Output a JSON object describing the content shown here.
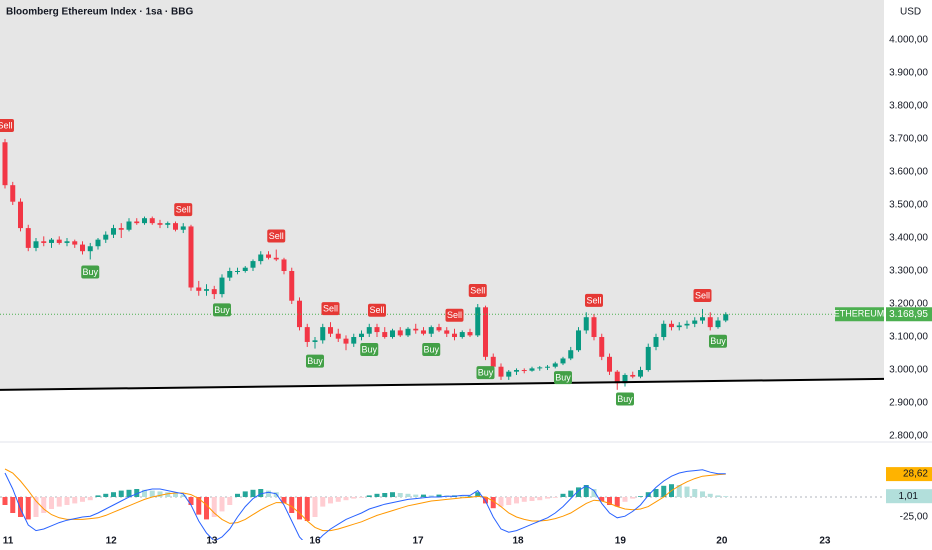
{
  "header": {
    "title": "Bloomberg Ethereum Index · 1sa · BBG"
  },
  "chart_data": [
    {
      "type": "candlestick",
      "currency": "USD",
      "up_color": "#089981",
      "down_color": "#f23645",
      "ylim": [
        2788,
        4121
      ],
      "yticks": [
        {
          "value": 4000,
          "label": "4.000,00"
        },
        {
          "value": 3900,
          "label": "3.900,00"
        },
        {
          "value": 3800,
          "label": "3.800,00"
        },
        {
          "value": 3700,
          "label": "3.700,00"
        },
        {
          "value": 3600,
          "label": "3.600,00"
        },
        {
          "value": 3500,
          "label": "3.500,00"
        },
        {
          "value": 3400,
          "label": "3.400,00"
        },
        {
          "value": 3300,
          "label": "3.300,00"
        },
        {
          "value": 3200,
          "label": "3.200,00"
        },
        {
          "value": 3100,
          "label": "3.100,00"
        },
        {
          "value": 3000,
          "label": "3.000,00"
        },
        {
          "value": 2900,
          "label": "2.900,00"
        },
        {
          "value": 2800,
          "label": "2.800,00"
        }
      ],
      "xlim": [
        -0.645,
        113.42
      ],
      "xticks": [
        {
          "value": 0.4,
          "label": "11"
        },
        {
          "value": 13.7,
          "label": "12"
        },
        {
          "value": 26.7,
          "label": "13"
        },
        {
          "value": 40,
          "label": "16"
        },
        {
          "value": 53.3,
          "label": "17"
        },
        {
          "value": 66.2,
          "label": "18"
        },
        {
          "value": 79.4,
          "label": "19"
        },
        {
          "value": 92.5,
          "label": "20"
        },
        {
          "value": 105.8,
          "label": "23"
        }
      ],
      "open": [
        3690,
        3560,
        3510,
        3430,
        3370,
        3390,
        3385,
        3395,
        3385,
        3390,
        3380,
        3360,
        3375,
        3395,
        3410,
        3430,
        3425,
        3450,
        3445,
        3460,
        3445,
        3440,
        3445,
        3425,
        3435,
        3250,
        3240,
        3245,
        3230,
        3280,
        3300,
        3300,
        3310,
        3330,
        3350,
        3340,
        3335,
        3300,
        3210,
        3130,
        3085,
        3090,
        3130,
        3110,
        3095,
        3080,
        3100,
        3110,
        3130,
        3115,
        3100,
        3120,
        3105,
        3125,
        3120,
        3110,
        3130,
        3120,
        3110,
        3100,
        3115,
        3105,
        3190,
        3040,
        3010,
        2980,
        2995,
        3000,
        2998,
        3005,
        3008,
        3010,
        3020,
        3035,
        3060,
        3120,
        3160,
        3100,
        3040,
        2995,
        2960,
        2985,
        2980,
        3000,
        3070,
        3100,
        3140,
        3130,
        3135,
        3140,
        3150,
        3160,
        3130,
        3150
      ],
      "high": [
        3700,
        3570,
        3520,
        3440,
        3400,
        3405,
        3400,
        3405,
        3400,
        3395,
        3390,
        3385,
        3400,
        3420,
        3440,
        3445,
        3460,
        3460,
        3465,
        3465,
        3455,
        3450,
        3450,
        3445,
        3440,
        3270,
        3260,
        3255,
        3290,
        3310,
        3310,
        3315,
        3335,
        3360,
        3360,
        3365,
        3340,
        3310,
        3220,
        3140,
        3100,
        3140,
        3145,
        3125,
        3105,
        3110,
        3120,
        3140,
        3140,
        3130,
        3125,
        3130,
        3130,
        3140,
        3130,
        3135,
        3140,
        3130,
        3125,
        3120,
        3125,
        3200,
        3195,
        3050,
        3020,
        3000,
        3005,
        3005,
        3010,
        3012,
        3015,
        3025,
        3040,
        3070,
        3130,
        3175,
        3170,
        3110,
        3050,
        3000,
        2990,
        2995,
        3010,
        3080,
        3110,
        3150,
        3150,
        3145,
        3150,
        3160,
        3185,
        3175,
        3160,
        3175
      ],
      "low": [
        3550,
        3500,
        3420,
        3360,
        3360,
        3375,
        3370,
        3380,
        3375,
        3370,
        3350,
        3335,
        3365,
        3385,
        3400,
        3400,
        3420,
        3440,
        3440,
        3440,
        3430,
        3430,
        3420,
        3415,
        3240,
        3225,
        3225,
        3215,
        3220,
        3270,
        3290,
        3295,
        3300,
        3320,
        3335,
        3330,
        3290,
        3200,
        3120,
        3070,
        3065,
        3080,
        3100,
        3085,
        3060,
        3070,
        3090,
        3100,
        3100,
        3095,
        3095,
        3100,
        3100,
        3110,
        3105,
        3100,
        3115,
        3100,
        3090,
        3095,
        3100,
        3100,
        3030,
        3000,
        2970,
        2970,
        2985,
        2990,
        2995,
        2998,
        3000,
        3005,
        3015,
        3030,
        3055,
        3110,
        3090,
        3030,
        2985,
        2940,
        2950,
        2975,
        2975,
        2995,
        3060,
        3090,
        3120,
        3120,
        3125,
        3130,
        3140,
        3120,
        3125,
        3145
      ],
      "close": [
        3560,
        3510,
        3430,
        3370,
        3390,
        3385,
        3395,
        3385,
        3390,
        3380,
        3360,
        3375,
        3395,
        3410,
        3430,
        3425,
        3450,
        3445,
        3460,
        3445,
        3440,
        3445,
        3425,
        3435,
        3250,
        3240,
        3245,
        3230,
        3280,
        3300,
        3300,
        3310,
        3330,
        3350,
        3340,
        3335,
        3300,
        3210,
        3130,
        3085,
        3090,
        3130,
        3110,
        3095,
        3080,
        3100,
        3110,
        3130,
        3115,
        3100,
        3120,
        3105,
        3125,
        3120,
        3110,
        3130,
        3120,
        3110,
        3100,
        3115,
        3105,
        3190,
        3040,
        3010,
        2980,
        2995,
        3000,
        2998,
        3005,
        3008,
        3010,
        3020,
        3035,
        3060,
        3120,
        3160,
        3100,
        3040,
        2995,
        2960,
        2985,
        2980,
        3000,
        3070,
        3100,
        3140,
        3130,
        3135,
        3140,
        3150,
        3160,
        3130,
        3150,
        3168.95
      ],
      "signals": [
        {
          "label": "Sell",
          "bar": 0
        },
        {
          "label": "Buy",
          "bar": 11
        },
        {
          "label": "Sell",
          "bar": 23
        },
        {
          "label": "Buy",
          "bar": 28
        },
        {
          "label": "Sell",
          "bar": 35
        },
        {
          "label": "Buy",
          "bar": 40
        },
        {
          "label": "Sell",
          "bar": 42
        },
        {
          "label": "Buy",
          "bar": 47
        },
        {
          "label": "Sell",
          "bar": 48
        },
        {
          "label": "Buy",
          "bar": 55
        },
        {
          "label": "Sell",
          "bar": 58
        },
        {
          "label": "Sell",
          "bar": 61
        },
        {
          "label": "Buy",
          "bar": 62
        },
        {
          "label": "Buy",
          "bar": 72
        },
        {
          "label": "Sell",
          "bar": 76
        },
        {
          "label": "Buy",
          "bar": 80
        },
        {
          "label": "Sell",
          "bar": 90
        },
        {
          "label": "Buy",
          "bar": 92
        }
      ],
      "sell_color": "#e53935",
      "buy_color": "#43a047",
      "trendline": {
        "start": {
          "bar": 0,
          "value": 2940
        },
        "end": {
          "bar": 110,
          "value": 2972
        },
        "color": "#000000",
        "fill": "#e6e6e6"
      },
      "last_price": {
        "name": "ETHEREUM",
        "value": 3168.95,
        "label": "3.168,95",
        "color": "#4caf50"
      }
    },
    {
      "type": "macd",
      "ylim": [
        -53.75,
        65
      ],
      "yticks": [
        {
          "value": -25,
          "label": "-25,00"
        }
      ],
      "histogram": {
        "colors": [
          "#26a69a",
          "#b2dfdb",
          "#ff5252",
          "#ffcdd2"
        ],
        "last_label": "1,01",
        "values": [
          -10,
          -20,
          -25,
          -28,
          -25,
          -20,
          -15,
          -12,
          -10,
          -8,
          -6,
          -4,
          2,
          4,
          6,
          8,
          9,
          10,
          9,
          8,
          7,
          6,
          5,
          3,
          -10,
          -22,
          -28,
          -25,
          -18,
          -10,
          4,
          7,
          9,
          10,
          8,
          6,
          -8,
          -20,
          -28,
          -30,
          -25,
          -12,
          -8,
          -6,
          -4,
          -2,
          -1,
          2,
          4,
          5,
          6,
          5,
          4,
          3,
          3,
          2,
          3,
          2,
          2,
          1,
          1,
          6,
          -8,
          -14,
          -12,
          -10,
          -8,
          -6,
          -5,
          -4,
          -2,
          -1,
          4,
          8,
          12,
          15,
          10,
          -5,
          -10,
          -12,
          -6,
          -2,
          1,
          6,
          10,
          14,
          16,
          15,
          13,
          10,
          7,
          4,
          2,
          1.01
        ]
      },
      "macd": {
        "color": "#2962ff",
        "values": [
          30,
          10,
          -15,
          -35,
          -42,
          -40,
          -36,
          -32,
          -29,
          -27,
          -25,
          -24,
          -20,
          -15,
          -10,
          -5,
          0,
          4,
          8,
          10,
          10,
          8,
          6,
          4,
          -10,
          -30,
          -45,
          -55,
          -50,
          -40,
          -25,
          -12,
          -2,
          4,
          6,
          4,
          -10,
          -30,
          -50,
          -60,
          -58,
          -48,
          -40,
          -34,
          -28,
          -24,
          -20,
          -15,
          -12,
          -9,
          -7,
          -5,
          -3,
          -2,
          -1,
          0,
          0,
          1,
          1,
          2,
          2,
          8,
          -5,
          -25,
          -40,
          -44,
          -42,
          -38,
          -34,
          -30,
          -26,
          -20,
          -12,
          -2,
          8,
          14,
          8,
          -8,
          -20,
          -26,
          -24,
          -18,
          -10,
          2,
          12,
          20,
          26,
          30,
          32,
          33,
          34,
          31,
          29,
          29
        ]
      },
      "signal": {
        "color": "#ff9800",
        "last_label": "28,62",
        "values": [
          35,
          30,
          20,
          8,
          -5,
          -15,
          -22,
          -26,
          -28,
          -28,
          -28,
          -27,
          -26,
          -23,
          -19,
          -15,
          -11,
          -7,
          -3,
          0,
          2,
          4,
          5,
          5,
          3,
          -2,
          -10,
          -20,
          -28,
          -33,
          -32,
          -28,
          -22,
          -16,
          -11,
          -7,
          -7,
          -12,
          -20,
          -30,
          -38,
          -42,
          -42,
          -40,
          -37,
          -34,
          -31,
          -27,
          -23,
          -20,
          -17,
          -14,
          -11,
          -9,
          -7,
          -5,
          -4,
          -3,
          -2,
          -1,
          -0.5,
          1,
          0,
          -5,
          -12,
          -20,
          -25,
          -28,
          -30,
          -30,
          -29,
          -27,
          -24,
          -20,
          -14,
          -8,
          -4,
          -5,
          -8,
          -12,
          -15,
          -16,
          -15,
          -12,
          -6,
          0,
          8,
          14,
          19,
          23,
          26,
          27,
          28,
          28.62
        ]
      }
    }
  ]
}
